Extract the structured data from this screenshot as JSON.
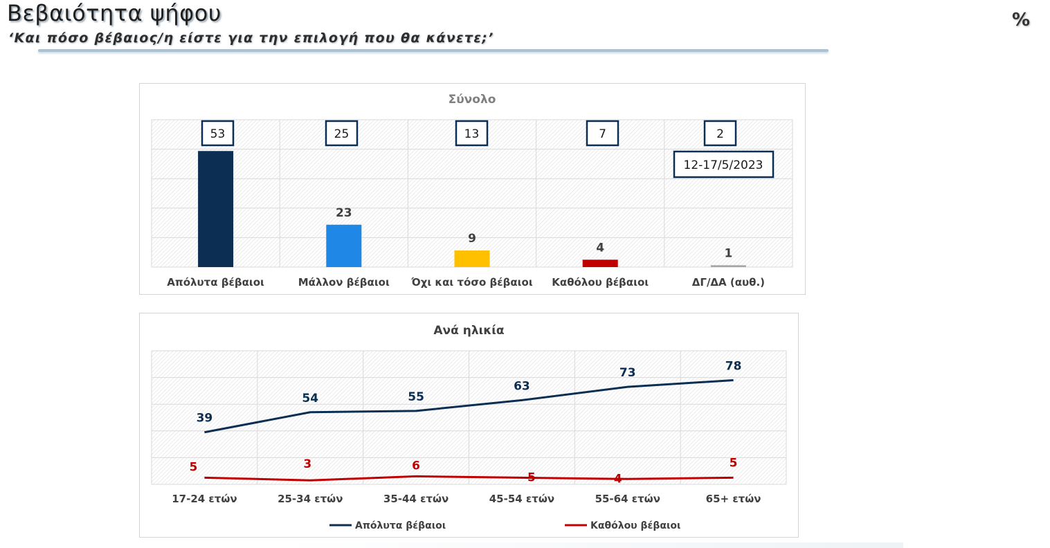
{
  "header": {
    "title": "Βεβαιότητα ψήφου",
    "subtitle": "‘Και πόσο βέβαιος/η είστε για την επιλογή που θα κάνετε;’",
    "unit": "%"
  },
  "chart_data": [
    {
      "type": "bar",
      "title": "Σύνολο",
      "categories": [
        "Απόλυτα βέβαιοι",
        "Μάλλον βέβαιοι",
        "Όχι και τόσο βέβαιοι",
        "Καθόλου βέβαιοι",
        "ΔΓ/ΔΑ (αυθ.)"
      ],
      "values": [
        63,
        23,
        9,
        4,
        1
      ],
      "previous_values": [
        53,
        25,
        13,
        7,
        2
      ],
      "previous_label": "12-17/5/2023",
      "bar_colors": [
        "#0b2e52",
        "#1f87e5",
        "#ffc000",
        "#c00000",
        "#a6a6a6"
      ],
      "ylim": [
        0,
        80
      ],
      "grid": true,
      "xlabel": "",
      "ylabel": ""
    },
    {
      "type": "line",
      "title": "Ανά ηλικία",
      "categories": [
        "17-24 ετών",
        "25-34 ετών",
        "35-44 ετών",
        "45-54 ετών",
        "55-64 ετών",
        "65+ ετών"
      ],
      "series": [
        {
          "name": "Απόλυτα βέβαιοι",
          "values": [
            39,
            54,
            55,
            63,
            73,
            78
          ],
          "color": "#0b2e52"
        },
        {
          "name": "Καθόλου βέβαιοι",
          "values": [
            5,
            3,
            6,
            5,
            4,
            5
          ],
          "color": "#c00000"
        }
      ],
      "ylim": [
        0,
        100
      ],
      "grid": true,
      "legend": "bottom",
      "xlabel": "",
      "ylabel": ""
    }
  ]
}
